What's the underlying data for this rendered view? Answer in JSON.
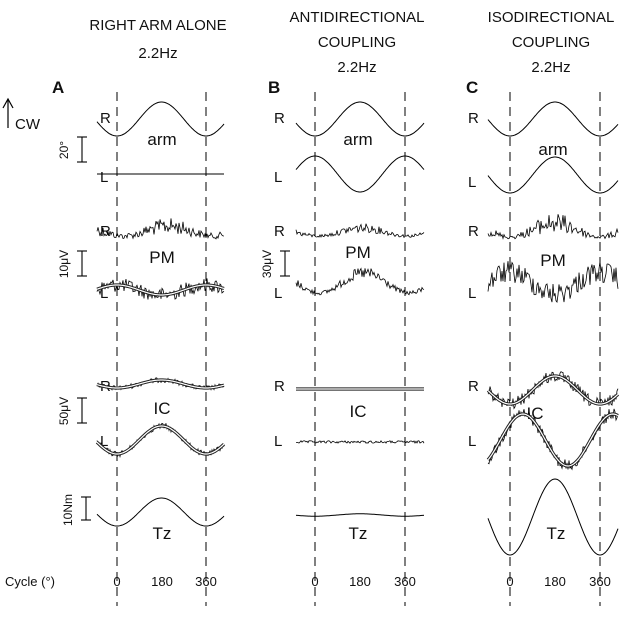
{
  "columns": [
    {
      "letter": "A",
      "title_lines": [
        "RIGHT ARM ALONE",
        "2.2Hz"
      ]
    },
    {
      "letter": "B",
      "title_lines": [
        "ANTIDIRECTIONAL",
        "COUPLING",
        "2.2Hz"
      ]
    },
    {
      "letter": "C",
      "title_lines": [
        "ISODIRECTIONAL",
        "COUPLING",
        "2.2Hz"
      ]
    }
  ],
  "direction_label": "CW",
  "trace_labels": {
    "right": "R",
    "left": "L"
  },
  "signal_names": {
    "arm": "arm",
    "pm": "PM",
    "ic": "IC",
    "tz": "Tz"
  },
  "scale_bars": {
    "arm": "20°",
    "pm_a": "10μV",
    "pm_b": "30μV",
    "ic": "50μV",
    "tz": "10Nm"
  },
  "cycle_axis": {
    "label": "Cycle (°)",
    "ticks": [
      "0",
      "180",
      "360"
    ]
  },
  "colors": {
    "trace": "#000000",
    "fit": "#ffffff",
    "background": "#ffffff"
  }
}
